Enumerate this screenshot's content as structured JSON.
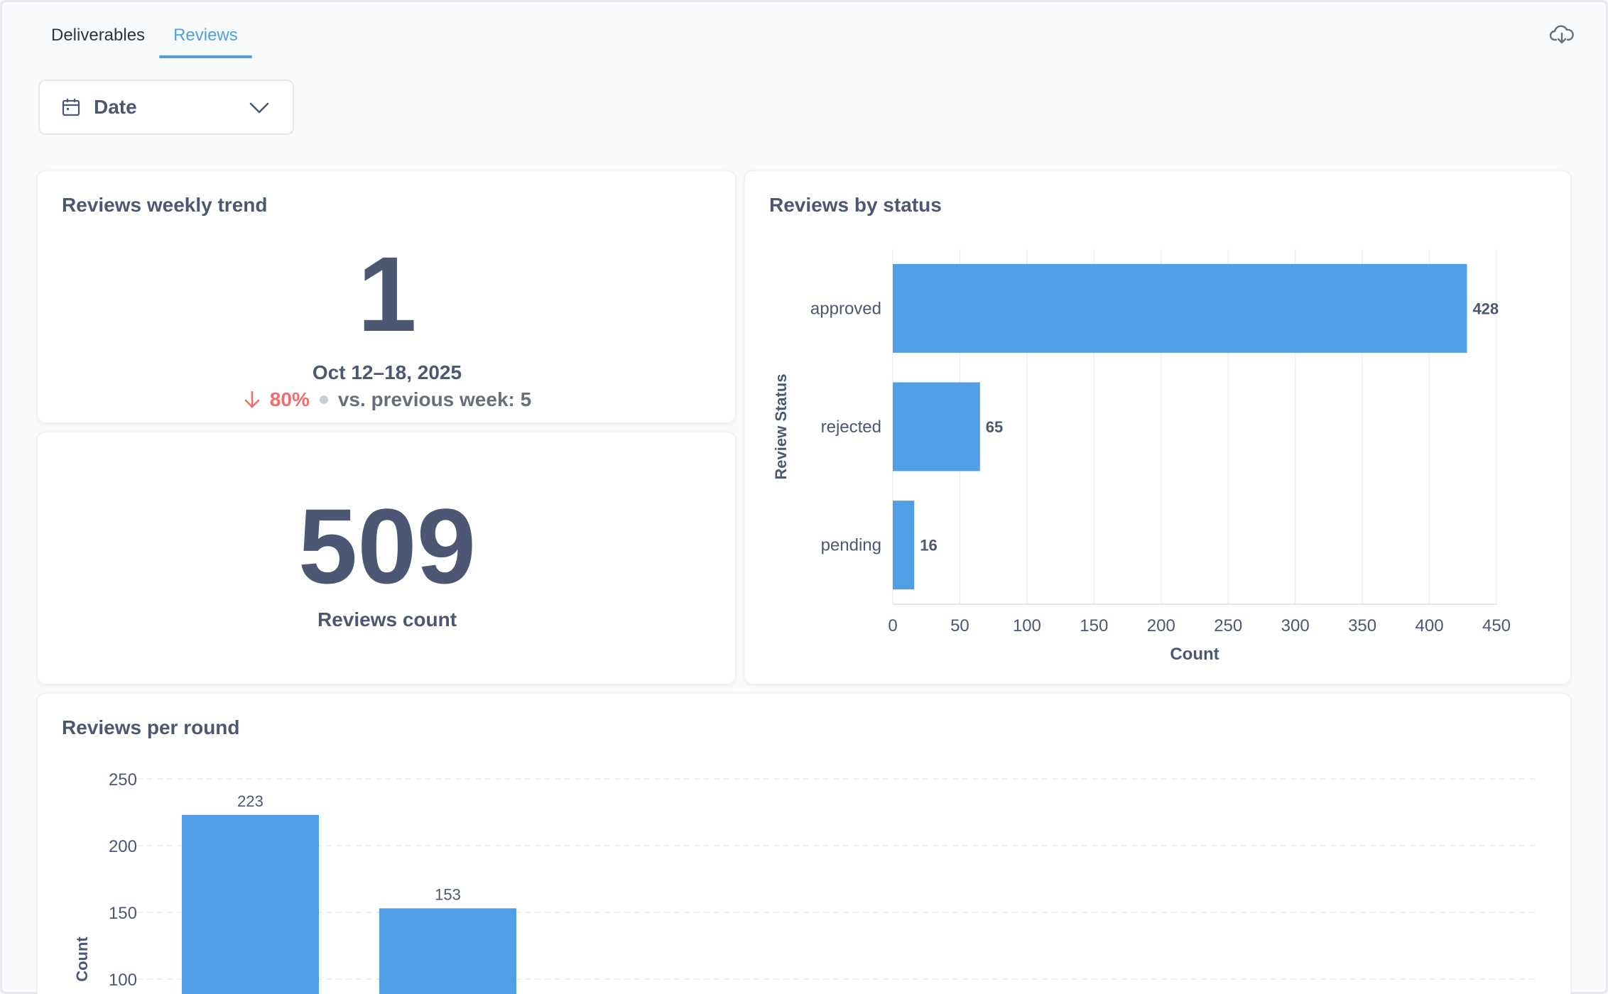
{
  "tabs": [
    {
      "label": "Deliverables",
      "active": false
    },
    {
      "label": "Reviews",
      "active": true
    }
  ],
  "toolbar": {
    "download_icon": "cloud-download-icon"
  },
  "filter": {
    "label": "Date",
    "icon": "calendar-icon"
  },
  "colors": {
    "accent": "#509ee3",
    "negative": "#ed6e6e",
    "text": "#4c5773"
  },
  "trend_card": {
    "title": "Reviews weekly trend",
    "value": "1",
    "period": "Oct 12–18, 2025",
    "change": "80%",
    "direction": "down",
    "comparison": "vs. previous week: 5"
  },
  "count_card": {
    "value": "509",
    "label": "Reviews count"
  },
  "status_card": {
    "title": "Reviews by status"
  },
  "round_card": {
    "title": "Reviews per round"
  },
  "chart_data": [
    {
      "type": "bar",
      "orientation": "horizontal",
      "title": "Reviews by status",
      "categories": [
        "approved",
        "rejected",
        "pending"
      ],
      "values": [
        428,
        65,
        16
      ],
      "xlabel": "Count",
      "ylabel": "Review Status",
      "xlim": [
        0,
        450
      ],
      "xticks": [
        0,
        50,
        100,
        150,
        200,
        250,
        300,
        350,
        400,
        450
      ],
      "grid": true,
      "data_labels": true
    },
    {
      "type": "bar",
      "orientation": "vertical",
      "title": "Reviews per round",
      "values": [
        223,
        153
      ],
      "ylabel": "Count",
      "yticks_visible": [
        250,
        200,
        150,
        100
      ],
      "grid": true,
      "data_labels": true
    }
  ]
}
